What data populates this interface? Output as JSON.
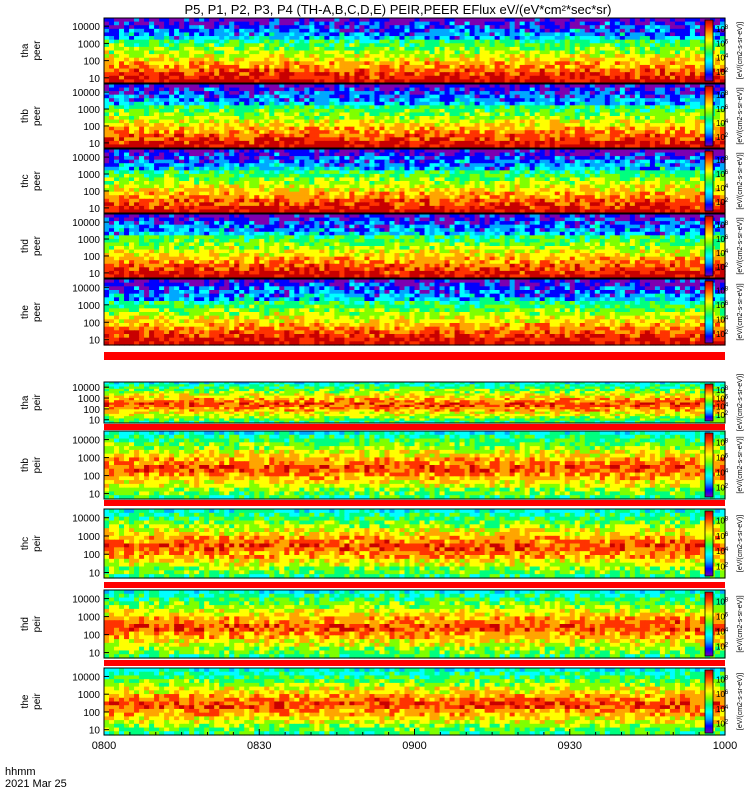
{
  "chart_data": {
    "type": "heatmap",
    "title": "P5, P1, P2, P3, P4 (TH-A,B,C,D,E) PEIR,PEER EFlux eV/(eV*cm²*sec*sr)",
    "x_tick_labels": [
      "0800",
      "0830",
      "0900",
      "0930",
      "1000"
    ],
    "x_minor_ticks_min": [
      0,
      5,
      10,
      15,
      20,
      25,
      30,
      35,
      40,
      45,
      50,
      55,
      60,
      65,
      70,
      75,
      80,
      85,
      90,
      95,
      100,
      105,
      110,
      115,
      120
    ],
    "xlim_min": [
      0,
      120
    ],
    "time_axis_label": "hhmm",
    "date_label": "2021 Mar 25",
    "y_tick_labels": [
      "10000",
      "1000",
      "100",
      "10"
    ],
    "y_values": [
      10000,
      1000,
      100,
      10
    ],
    "y_scale": "log",
    "ylim": [
      5,
      30000
    ],
    "colorbar_tick_exponents": [
      2,
      4,
      6,
      8
    ],
    "colorbar_unit_label": "[eV/(cm2-s-sr-eV)]",
    "colorbar_colors": [
      "#7d00b0",
      "#0000ff",
      "#00a8ff",
      "#00ffff",
      "#00ff7f",
      "#7fff00",
      "#ffff00",
      "#ffa500",
      "#ff3300",
      "#c80000"
    ],
    "panels": [
      {
        "probe": "tha",
        "species": "peer",
        "label_line1": "tha",
        "label_line2": "peer"
      },
      {
        "probe": "thb",
        "species": "peer",
        "label_line1": "thb",
        "label_line2": "peer"
      },
      {
        "probe": "thc",
        "species": "peer",
        "label_line1": "thc",
        "label_line2": "peer"
      },
      {
        "probe": "thd",
        "species": "peer",
        "label_line1": "thd",
        "label_line2": "peer"
      },
      {
        "probe": "the",
        "species": "peer",
        "label_line1": "the",
        "label_line2": "peer"
      },
      {
        "probe": "tha",
        "species": "peir",
        "label_line1": "tha",
        "label_line2": "peir"
      },
      {
        "probe": "thb",
        "species": "peir",
        "label_line1": "thb",
        "label_line2": "peir"
      },
      {
        "probe": "thc",
        "species": "peir",
        "label_line1": "thc",
        "label_line2": "peir"
      },
      {
        "probe": "thd",
        "species": "peir",
        "label_line1": "thd",
        "label_line2": "peir"
      },
      {
        "probe": "the",
        "species": "peir",
        "label_line1": "the",
        "label_line2": "peir"
      }
    ]
  }
}
